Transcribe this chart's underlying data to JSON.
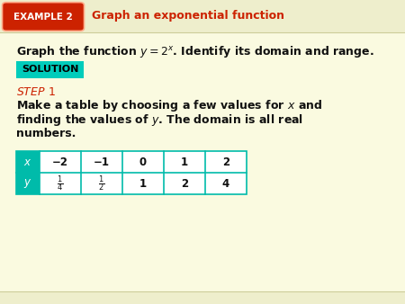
{
  "bg_color": "#fafae0",
  "header_bg": "#eeeecc",
  "example_box_color": "#cc2200",
  "example_box_text": "EXAMPLE 2",
  "example_box_text_color": "#ffffff",
  "header_title": "Graph an exponential function",
  "header_title_color": "#cc2200",
  "solution_bg": "#00ccbb",
  "solution_text": "SOLUTION",
  "step_text_color": "#cc2200",
  "table_border_color": "#00bbaa",
  "table_header_bg": "#00bbaa",
  "text_color": "#111111",
  "table_x_values": [
    "−2",
    "−1",
    "0",
    "1",
    "2"
  ],
  "footer_bg": "#eeeecc"
}
